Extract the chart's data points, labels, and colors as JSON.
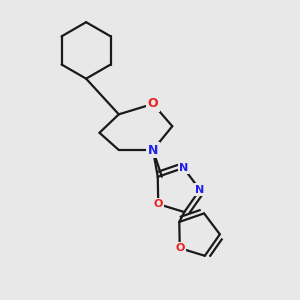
{
  "bg_color": "#e8e8e8",
  "bond_color": "#1a1a1a",
  "N_color": "#2020ee",
  "O_color": "#ee2020",
  "bond_width": 1.6,
  "figsize": [
    3.0,
    3.0
  ],
  "dpi": 100,
  "xlim": [
    0.0,
    1.0
  ],
  "ylim": [
    0.0,
    1.0
  ]
}
